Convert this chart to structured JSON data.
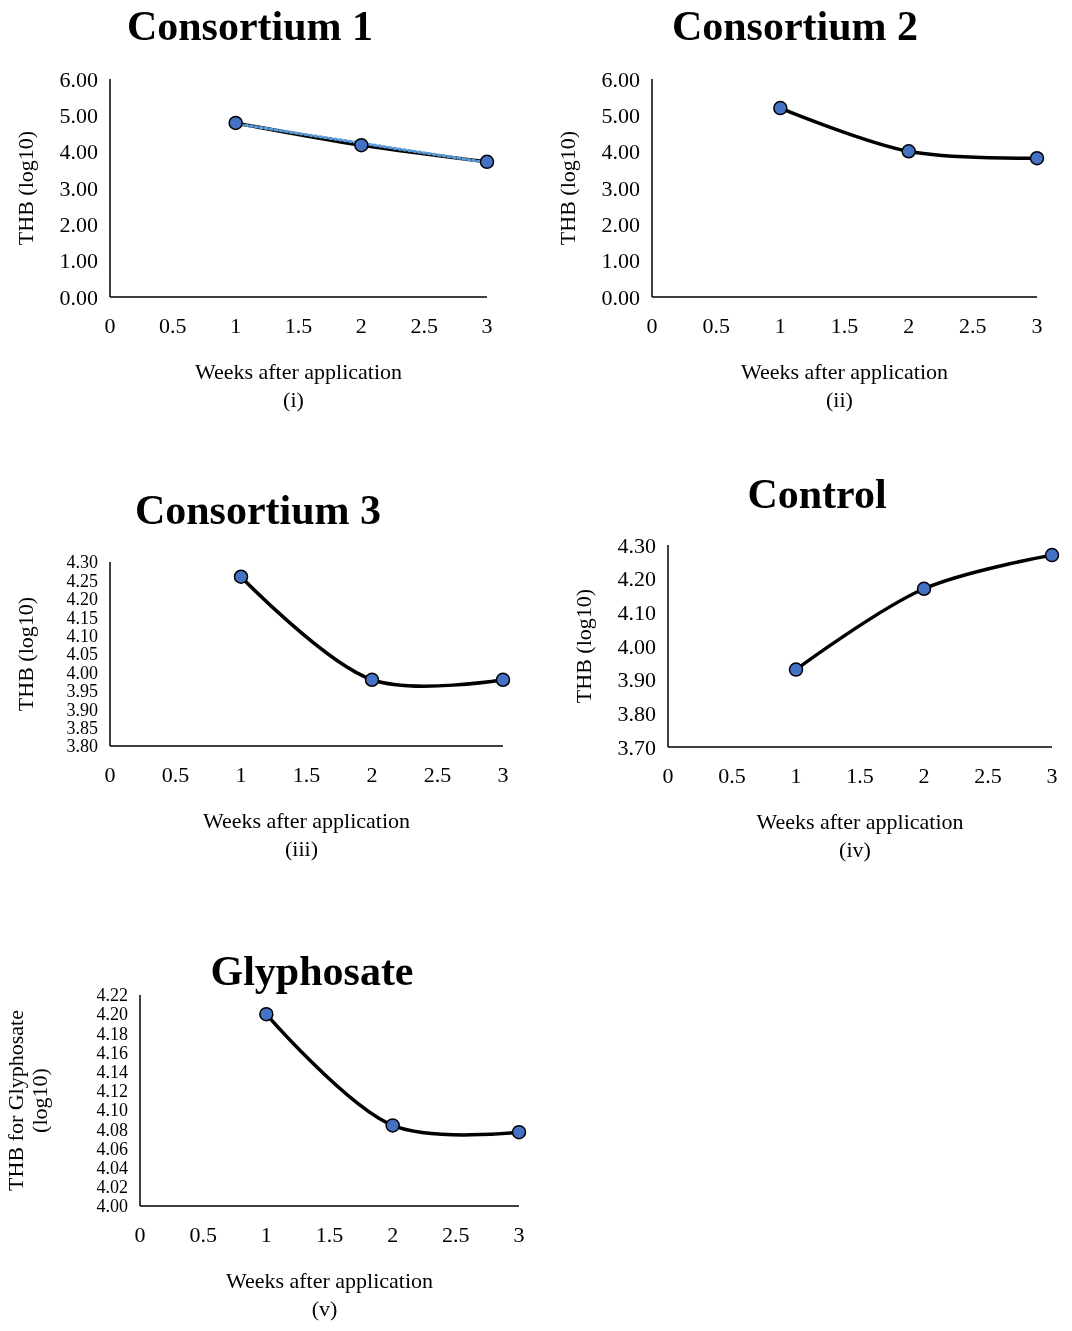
{
  "chart_data": [
    {
      "type": "line",
      "title": "Consortium 1",
      "xlabel": "Weeks after application",
      "ylabel": "THB (log10)",
      "annotations": [
        "(i)"
      ],
      "x": [
        1,
        2,
        3
      ],
      "xlim": [
        0,
        3
      ],
      "xticks": [
        0,
        0.5,
        1,
        1.5,
        2,
        2.5,
        3
      ],
      "ylim": [
        0,
        6
      ],
      "yticks": [
        {
          "value": 0,
          "label": "0.00"
        },
        {
          "value": 1,
          "label": "1.00"
        },
        {
          "value": 2,
          "label": "2.00"
        },
        {
          "value": 3,
          "label": "3.00"
        },
        {
          "value": 4,
          "label": "4.00"
        },
        {
          "value": 5,
          "label": "5.00"
        },
        {
          "value": 6,
          "label": "6.00"
        }
      ],
      "series": [
        {
          "color": "#000000",
          "values": [
            4.79,
            4.18,
            3.72
          ],
          "line_style": "solid"
        },
        {
          "color": "#5b9bd5",
          "x": [
            1,
            3
          ],
          "values": [
            4.77,
            3.7
          ],
          "line_style": "dotted"
        },
        {
          "type": "scatter",
          "color": "#4472c4",
          "values": [
            4.79,
            4.18,
            3.72
          ],
          "marker": "circle"
        }
      ]
    },
    {
      "type": "line",
      "title": "Consortium 2",
      "xlabel": "Weeks after application",
      "ylabel": "THB (log10)",
      "annotations": [
        "(ii)"
      ],
      "x": [
        1,
        2,
        3
      ],
      "xlim": [
        0,
        3
      ],
      "xticks": [
        0,
        0.5,
        1,
        1.5,
        2,
        2.5,
        3
      ],
      "ylim": [
        0,
        6
      ],
      "yticks": [
        {
          "value": 0,
          "label": "0.00"
        },
        {
          "value": 1,
          "label": "1.00"
        },
        {
          "value": 2,
          "label": "2.00"
        },
        {
          "value": 3,
          "label": "3.00"
        },
        {
          "value": 4,
          "label": "4.00"
        },
        {
          "value": 5,
          "label": "5.00"
        },
        {
          "value": 6,
          "label": "6.00"
        }
      ],
      "series": [
        {
          "color": "#000000",
          "values": [
            5.2,
            4.01,
            3.82
          ],
          "line_style": "solid"
        },
        {
          "type": "scatter",
          "color": "#4472c4",
          "values": [
            5.2,
            4.01,
            3.82
          ],
          "marker": "circle"
        }
      ]
    },
    {
      "type": "line",
      "title": "Consortium 3",
      "xlabel": "Weeks after application",
      "ylabel": "THB (log10)",
      "annotations": [
        "(iii)"
      ],
      "x": [
        1,
        2,
        3
      ],
      "xlim": [
        0,
        3
      ],
      "xticks": [
        0,
        0.5,
        1,
        1.5,
        2,
        2.5,
        3
      ],
      "ylim": [
        3.8,
        4.3
      ],
      "yticks": [
        {
          "value": 3.8,
          "label": "3.80"
        },
        {
          "value": 3.85,
          "label": "3.85"
        },
        {
          "value": 3.9,
          "label": "3.90"
        },
        {
          "value": 3.95,
          "label": "3.95"
        },
        {
          "value": 4,
          "label": "4.00"
        },
        {
          "value": 4.05,
          "label": "4.05"
        },
        {
          "value": 4.1,
          "label": "4.10"
        },
        {
          "value": 4.15,
          "label": "4.15"
        },
        {
          "value": 4.2,
          "label": "4.20"
        },
        {
          "value": 4.25,
          "label": "4.25"
        },
        {
          "value": 4.3,
          "label": "4.30"
        }
      ],
      "series": [
        {
          "color": "#000000",
          "values": [
            4.26,
            3.98,
            3.98
          ],
          "line_style": "solid"
        },
        {
          "type": "scatter",
          "color": "#4472c4",
          "values": [
            4.26,
            3.98,
            3.98
          ],
          "marker": "circle"
        }
      ]
    },
    {
      "type": "line",
      "title": "Control",
      "xlabel": "Weeks after application",
      "ylabel": "THB (log10)",
      "annotations": [
        "(iv)"
      ],
      "x": [
        1,
        2,
        3
      ],
      "xlim": [
        0,
        3
      ],
      "xticks": [
        0,
        0.5,
        1,
        1.5,
        2,
        2.5,
        3
      ],
      "ylim": [
        3.7,
        4.3
      ],
      "yticks": [
        {
          "value": 3.7,
          "label": "3.70"
        },
        {
          "value": 3.8,
          "label": "3.80"
        },
        {
          "value": 3.9,
          "label": "3.90"
        },
        {
          "value": 4,
          "label": "4.00"
        },
        {
          "value": 4.1,
          "label": "4.10"
        },
        {
          "value": 4.2,
          "label": "4.20"
        },
        {
          "value": 4.3,
          "label": "4.30"
        }
      ],
      "series": [
        {
          "color": "#000000",
          "values": [
            3.93,
            4.17,
            4.27
          ],
          "line_style": "solid"
        },
        {
          "type": "scatter",
          "color": "#4472c4",
          "values": [
            3.93,
            4.17,
            4.27
          ],
          "marker": "circle"
        }
      ]
    },
    {
      "type": "line",
      "title": "Glyphosate",
      "xlabel": "Weeks after application",
      "ylabel": "THB for Glyphosate (log10)",
      "annotations": [
        "(v)"
      ],
      "x": [
        1,
        2,
        3
      ],
      "xlim": [
        0,
        3
      ],
      "xticks": [
        0,
        0.5,
        1,
        1.5,
        2,
        2.5,
        3
      ],
      "ylim": [
        4,
        4.22
      ],
      "yticks": [
        {
          "value": 4,
          "label": "4.00"
        },
        {
          "value": 4.02,
          "label": "4.02"
        },
        {
          "value": 4.04,
          "label": "4.04"
        },
        {
          "value": 4.06,
          "label": "4.06"
        },
        {
          "value": 4.08,
          "label": "4.08"
        },
        {
          "value": 4.1,
          "label": "4.10"
        },
        {
          "value": 4.12,
          "label": "4.12"
        },
        {
          "value": 4.14,
          "label": "4.14"
        },
        {
          "value": 4.16,
          "label": "4.16"
        },
        {
          "value": 4.18,
          "label": "4.18"
        },
        {
          "value": 4.2,
          "label": "4.20"
        },
        {
          "value": 4.22,
          "label": "4.22"
        }
      ],
      "series": [
        {
          "color": "#000000",
          "values": [
            4.2,
            4.084,
            4.077
          ],
          "line_style": "solid"
        },
        {
          "type": "scatter",
          "color": "#4472c4",
          "values": [
            4.2,
            4.084,
            4.077
          ],
          "marker": "circle"
        }
      ]
    }
  ]
}
